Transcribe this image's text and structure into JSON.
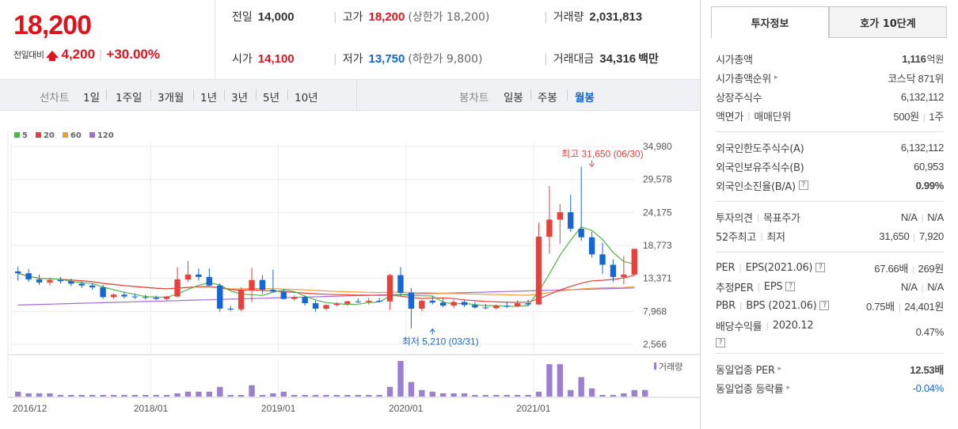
{
  "price": {
    "current": "18,200",
    "change_label": "전일대비",
    "change_value": "4,200",
    "change_pct": "+30.00%"
  },
  "stats": {
    "prev_label": "전일",
    "prev_value": "14,000",
    "high_label": "고가",
    "high_value": "18,200",
    "high_sub": "(상한가 18,200)",
    "volume_label": "거래량",
    "volume_value": "2,031,813",
    "open_label": "시가",
    "open_value": "14,100",
    "low_label": "저가",
    "low_value": "13,750",
    "low_sub": "(하한가 9,800)",
    "amount_label": "거래대금",
    "amount_value": "34,316",
    "amount_unit": "백만"
  },
  "toolbar": {
    "line_label": "선차트",
    "line_periods": [
      "1일",
      "1주일",
      "3개월",
      "1년",
      "3년",
      "5년",
      "10년"
    ],
    "candle_label": "봉차트",
    "candle_periods": [
      "일봉",
      "주봉",
      "월봉"
    ],
    "active_candle": "월봉"
  },
  "legend": [
    {
      "label": "5",
      "color": "#4cb748"
    },
    {
      "label": "20",
      "color": "#e8413c"
    },
    {
      "label": "60",
      "color": "#f39a3a"
    },
    {
      "label": "120",
      "color": "#a66bd6"
    }
  ],
  "chart_data": {
    "type": "candlestick",
    "y_ticks": [
      "34,980",
      "29,578",
      "24,175",
      "18,773",
      "13,371",
      "7,968",
      "2,566"
    ],
    "y_tick_values": [
      34980,
      29578,
      24175,
      18773,
      13371,
      7968,
      2566
    ],
    "x_labels": [
      "2016/12",
      "2018/01",
      "2019/01",
      "2020/01",
      "2021/01"
    ],
    "x_label_index": [
      0,
      13,
      25,
      37,
      49
    ],
    "annotations": {
      "high_text": "최고 31,650 (06/30)",
      "low_text": "최저 5,210 (03/31)",
      "high_index": 54,
      "high_value": 31650,
      "low_index": 39,
      "low_value": 5210
    },
    "volume_label": "거래량",
    "colors": {
      "up": "#e8413c",
      "down": "#1667d4",
      "volume": "#9b7fd0"
    },
    "candles": [
      {
        "o": 14500,
        "h": 15300,
        "l": 13000,
        "c": 14200
      },
      {
        "o": 14200,
        "h": 14900,
        "l": 12800,
        "c": 13200
      },
      {
        "o": 13200,
        "h": 14000,
        "l": 12300,
        "c": 12700
      },
      {
        "o": 12700,
        "h": 13500,
        "l": 12200,
        "c": 13100
      },
      {
        "o": 13100,
        "h": 13600,
        "l": 12500,
        "c": 12900
      },
      {
        "o": 12900,
        "h": 13300,
        "l": 12100,
        "c": 12500
      },
      {
        "o": 12500,
        "h": 13000,
        "l": 11800,
        "c": 12200
      },
      {
        "o": 12200,
        "h": 12600,
        "l": 11500,
        "c": 11900
      },
      {
        "o": 11900,
        "h": 12300,
        "l": 10000,
        "c": 10300
      },
      {
        "o": 10300,
        "h": 10900,
        "l": 10000,
        "c": 10700
      },
      {
        "o": 10700,
        "h": 11200,
        "l": 10100,
        "c": 10400
      },
      {
        "o": 10400,
        "h": 10900,
        "l": 10000,
        "c": 10300
      },
      {
        "o": 10300,
        "h": 10700,
        "l": 9900,
        "c": 10200
      },
      {
        "o": 10200,
        "h": 10500,
        "l": 9800,
        "c": 10000
      },
      {
        "o": 10000,
        "h": 10500,
        "l": 9700,
        "c": 10400
      },
      {
        "o": 10400,
        "h": 15200,
        "l": 10200,
        "c": 13200
      },
      {
        "o": 13200,
        "h": 16200,
        "l": 12800,
        "c": 14000
      },
      {
        "o": 14000,
        "h": 15000,
        "l": 13000,
        "c": 13600
      },
      {
        "o": 13600,
        "h": 15000,
        "l": 12000,
        "c": 12200
      },
      {
        "o": 12200,
        "h": 12600,
        "l": 7900,
        "c": 8400
      },
      {
        "o": 8400,
        "h": 8900,
        "l": 8000,
        "c": 8300
      },
      {
        "o": 8300,
        "h": 11900,
        "l": 8000,
        "c": 11500
      },
      {
        "o": 11500,
        "h": 15100,
        "l": 9500,
        "c": 13100
      },
      {
        "o": 13100,
        "h": 13900,
        "l": 10800,
        "c": 11500
      },
      {
        "o": 11500,
        "h": 14800,
        "l": 11000,
        "c": 11200
      },
      {
        "o": 11200,
        "h": 11600,
        "l": 9900,
        "c": 10000
      },
      {
        "o": 10000,
        "h": 10600,
        "l": 9700,
        "c": 10300
      },
      {
        "o": 10300,
        "h": 10500,
        "l": 8900,
        "c": 9300
      },
      {
        "o": 9300,
        "h": 9700,
        "l": 7900,
        "c": 8400
      },
      {
        "o": 8400,
        "h": 9100,
        "l": 8100,
        "c": 9000
      },
      {
        "o": 9000,
        "h": 9500,
        "l": 8800,
        "c": 9200
      },
      {
        "o": 9200,
        "h": 9700,
        "l": 8900,
        "c": 9600
      },
      {
        "o": 9600,
        "h": 10100,
        "l": 9300,
        "c": 9500
      },
      {
        "o": 9500,
        "h": 10200,
        "l": 9100,
        "c": 9700
      },
      {
        "o": 9700,
        "h": 10200,
        "l": 9400,
        "c": 9600
      },
      {
        "o": 9600,
        "h": 14100,
        "l": 8200,
        "c": 13900
      },
      {
        "o": 13900,
        "h": 15200,
        "l": 10400,
        "c": 11000
      },
      {
        "o": 11000,
        "h": 11800,
        "l": 5210,
        "c": 8400
      },
      {
        "o": 8400,
        "h": 9900,
        "l": 8000,
        "c": 9700
      },
      {
        "o": 9700,
        "h": 10400,
        "l": 9100,
        "c": 9400
      },
      {
        "o": 9400,
        "h": 10200,
        "l": 8600,
        "c": 8900
      },
      {
        "o": 8900,
        "h": 9900,
        "l": 8500,
        "c": 9500
      },
      {
        "o": 9500,
        "h": 9800,
        "l": 8700,
        "c": 9000
      },
      {
        "o": 9000,
        "h": 9500,
        "l": 8400,
        "c": 8600
      },
      {
        "o": 8600,
        "h": 9200,
        "l": 8300,
        "c": 8500
      },
      {
        "o": 8500,
        "h": 9100,
        "l": 8300,
        "c": 8900
      },
      {
        "o": 8900,
        "h": 9600,
        "l": 8500,
        "c": 8800
      },
      {
        "o": 8800,
        "h": 9800,
        "l": 8700,
        "c": 9300
      },
      {
        "o": 9300,
        "h": 9900,
        "l": 8800,
        "c": 9100
      },
      {
        "o": 9100,
        "h": 22500,
        "l": 9000,
        "c": 20200
      },
      {
        "o": 20200,
        "h": 28500,
        "l": 17400,
        "c": 23000
      },
      {
        "o": 23000,
        "h": 25500,
        "l": 19000,
        "c": 24200
      },
      {
        "o": 24200,
        "h": 27100,
        "l": 21000,
        "c": 21500
      },
      {
        "o": 21500,
        "h": 31650,
        "l": 19500,
        "c": 20100
      },
      {
        "o": 20100,
        "h": 21000,
        "l": 16800,
        "c": 17300
      },
      {
        "o": 17300,
        "h": 19200,
        "l": 14100,
        "c": 15600
      },
      {
        "o": 15600,
        "h": 16500,
        "l": 12800,
        "c": 13600
      },
      {
        "o": 13600,
        "h": 17000,
        "l": 12400,
        "c": 14000
      },
      {
        "o": 14000,
        "h": 18200,
        "l": 13750,
        "c": 18200
      }
    ],
    "volume": [
      3,
      2,
      2,
      2,
      1,
      1,
      1,
      1,
      1,
      1,
      1,
      1,
      1,
      1,
      1,
      2,
      3,
      3,
      3,
      6,
      1,
      1,
      7,
      1,
      2,
      3,
      1,
      1,
      1,
      1,
      1,
      1,
      1,
      1,
      1,
      6,
      22,
      9,
      4,
      3,
      2,
      2,
      2,
      1,
      1,
      1,
      1,
      1,
      1,
      3,
      20,
      20,
      4,
      12,
      5,
      1,
      1,
      2,
      4,
      4
    ]
  },
  "side": {
    "tabs": [
      "투자정보",
      "호가 10단계"
    ],
    "sections": [
      [
        {
          "k": "시가총액",
          "v": "1,116",
          "unit": "억원",
          "bold": true
        },
        {
          "k": "시가총액순위",
          "v": "코스닥 871위",
          "arrow": true
        },
        {
          "k": "상장주식수",
          "v": "6,132,112"
        },
        {
          "k": "액면가",
          "k2": "매매단위",
          "v": "500원",
          "v2": "1주"
        }
      ],
      [
        {
          "k": "외국인한도주식수(A)",
          "v": "6,132,112"
        },
        {
          "k": "외국인보유주식수(B)",
          "v": "60,953"
        },
        {
          "k": "외국인소진율(B/A)",
          "v": "0.99%",
          "bold": true,
          "qm": true
        }
      ],
      [
        {
          "k": "투자의견",
          "k2": "목표주가",
          "v": "N/A",
          "v2": "N/A"
        },
        {
          "k": "52주최고",
          "k2": "최저",
          "v": "31,650",
          "v2": "7,920"
        }
      ],
      [
        {
          "k": "PER",
          "k2": "EPS(2021.06)",
          "v": "67.66배",
          "v2": "269원",
          "qm": true
        },
        {
          "k": "추정PER",
          "k2": "EPS",
          "v": "N/A",
          "v2": "N/A",
          "qm": true
        },
        {
          "k": "PBR",
          "k2": "BPS (2021.06)",
          "v": "0.75배",
          "v2": "24,401원",
          "qm": true
        },
        {
          "k": "배당수익률",
          "k2": "2020.12",
          "v": "0.47%",
          "qm_below": true
        }
      ],
      [
        {
          "k": "동일업종 PER",
          "v": "12.53배",
          "bold": true,
          "arrow": true
        },
        {
          "k": "동일업종 등락률",
          "v": "-0.04%",
          "blue": true,
          "arrow": true
        }
      ]
    ]
  }
}
